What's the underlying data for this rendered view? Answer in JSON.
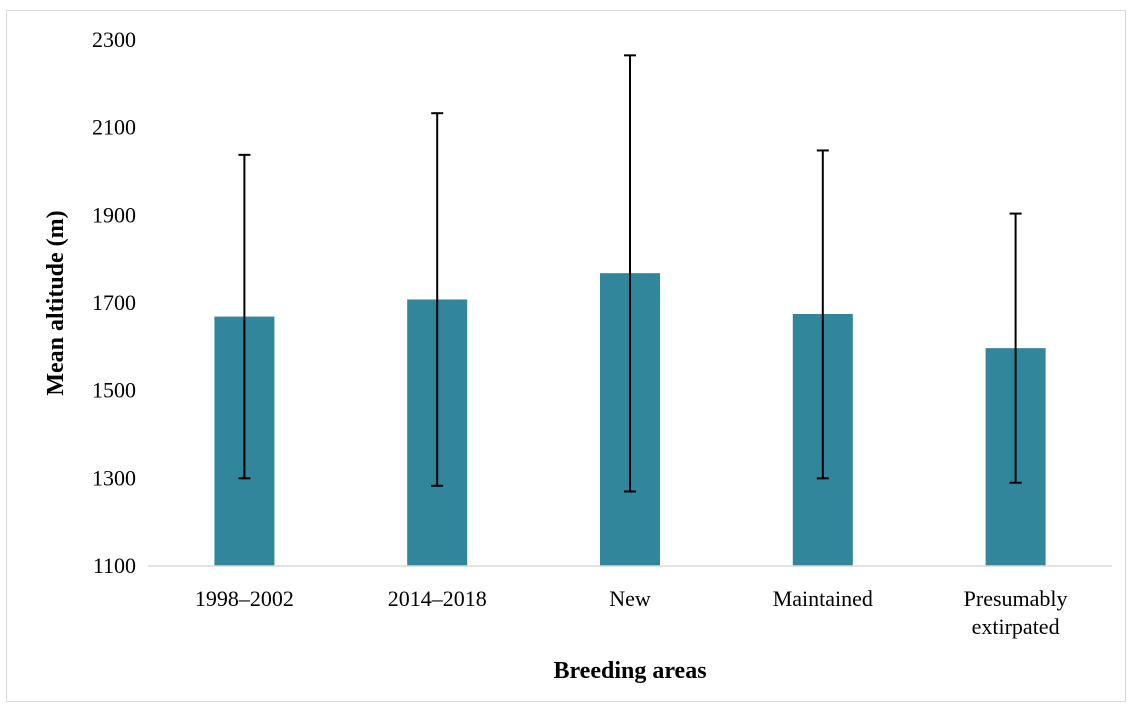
{
  "chart_data": {
    "type": "bar",
    "title": "",
    "xlabel": "Breeding areas",
    "ylabel": "Mean altitude (m)",
    "categories": [
      [
        "1998–2002"
      ],
      [
        "2014–2018"
      ],
      [
        "New"
      ],
      [
        "Maintained"
      ],
      [
        "Presumably",
        "extirpated"
      ]
    ],
    "values": [
      1669,
      1708,
      1768,
      1675,
      1597
    ],
    "error_low": [
      1300,
      1283,
      1270,
      1300,
      1290
    ],
    "error_high": [
      2038,
      2133,
      2265,
      2048,
      1904
    ],
    "ylim": [
      1100,
      2300
    ],
    "yticks": [
      1100,
      1300,
      1500,
      1700,
      1900,
      2100,
      2300
    ],
    "grid": false,
    "bar_color": "#31869b"
  }
}
